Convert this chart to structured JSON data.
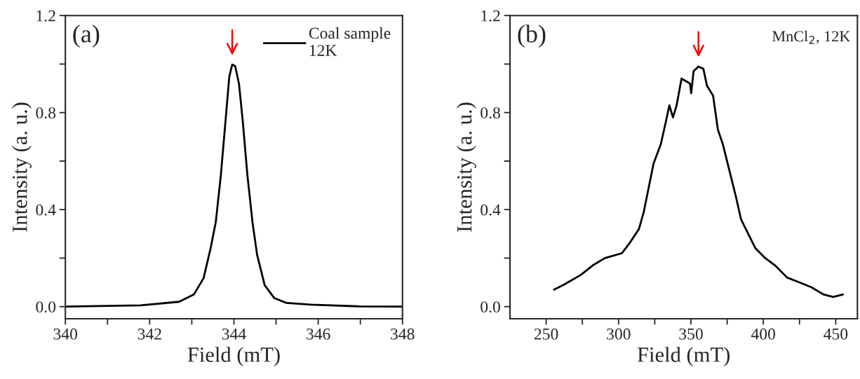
{
  "chart_data": [
    {
      "type": "line",
      "xlabel": "Field (mT)",
      "ylabel": "Intensity (a. u.)",
      "annotations": [
        "(a)"
      ],
      "legend": "top right",
      "xlim": [
        340,
        348
      ],
      "xticks": [
        340,
        {
          "value": 341,
          "label": null
        },
        342,
        {
          "value": 343,
          "label": null
        },
        344,
        {
          "value": 345,
          "label": null
        },
        346,
        {
          "value": 347,
          "label": null
        },
        348
      ],
      "ylim": [
        -0.05,
        1.2
      ],
      "yticks": [
        {
          "value": 0,
          "label": "0.0"
        },
        {
          "value": 0.2,
          "label": null
        },
        {
          "value": 0.4,
          "label": "0.4"
        },
        {
          "value": 0.6,
          "label": null
        },
        {
          "value": 0.8,
          "label": "0.8"
        },
        {
          "value": 1.0,
          "label": null
        },
        {
          "value": 1.2,
          "label": "1.2"
        }
      ],
      "series": [
        {
          "name": "Coal sample\n12K",
          "color": "#000000",
          "x": [
            340.0,
            341.78,
            342.7,
            343.05,
            343.28,
            343.45,
            343.57,
            343.69,
            343.8,
            343.89,
            343.96,
            344.03,
            344.12,
            344.21,
            344.32,
            344.44,
            344.55,
            344.73,
            344.96,
            345.25,
            345.83,
            346.98,
            348.0
          ],
          "values": [
            0.0,
            0.005,
            0.02,
            0.05,
            0.117,
            0.243,
            0.349,
            0.542,
            0.764,
            0.948,
            0.998,
            0.991,
            0.919,
            0.764,
            0.542,
            0.349,
            0.214,
            0.088,
            0.035,
            0.015,
            0.008,
            0.001,
            0.0
          ]
        }
      ]
    },
    {
      "type": "line",
      "xlabel": "Field (mT)",
      "ylabel": "Intensity (a. u.)",
      "annotations": [
        "(b)",
        "MnCl$_{2}$, 12K"
      ],
      "xlim": [
        225,
        465
      ],
      "xticks": [
        250,
        {
          "value": 275,
          "label": null
        },
        300,
        {
          "value": 325,
          "label": null
        },
        350,
        {
          "value": 375,
          "label": null
        },
        400,
        {
          "value": 425,
          "label": null
        },
        450
      ],
      "ylim": [
        -0.05,
        1.2
      ],
      "yticks": [
        {
          "value": 0,
          "label": "0.0"
        },
        {
          "value": 0.2,
          "label": null
        },
        {
          "value": 0.4,
          "label": "0.4"
        },
        {
          "value": 0.6,
          "label": null
        },
        {
          "value": 0.8,
          "label": "0.8"
        },
        {
          "value": 1.0,
          "label": null
        },
        {
          "value": 1.2,
          "label": "1.2"
        }
      ],
      "series": [
        {
          "color": "#000000",
          "x": [
            255.4,
            262.1,
            273.8,
            282.2,
            290.6,
            302.3,
            307.4,
            314.1,
            317.4,
            320.8,
            324.2,
            329.2,
            332.6,
            335.1,
            337.6,
            340.1,
            343.5,
            349.3,
            350.2,
            351.8,
            355.2,
            358.6,
            361.1,
            365.3,
            368.6,
            372.0,
            376.2,
            381.2,
            384.6,
            389.6,
            394.6,
            401.3,
            408.1,
            416.4,
            424.8,
            433.2,
            441.6,
            448.3,
            455.0
          ],
          "values": [
            0.07,
            0.09,
            0.13,
            0.17,
            0.2,
            0.22,
            0.26,
            0.32,
            0.39,
            0.49,
            0.59,
            0.67,
            0.76,
            0.83,
            0.78,
            0.83,
            0.94,
            0.92,
            0.88,
            0.97,
            0.99,
            0.98,
            0.91,
            0.87,
            0.73,
            0.67,
            0.57,
            0.45,
            0.36,
            0.3,
            0.24,
            0.2,
            0.17,
            0.12,
            0.1,
            0.08,
            0.05,
            0.04,
            0.05
          ]
        }
      ]
    }
  ]
}
